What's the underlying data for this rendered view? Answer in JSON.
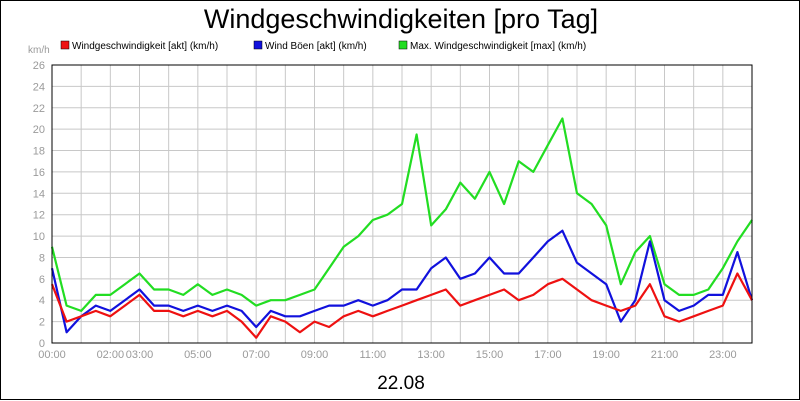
{
  "chart_data": {
    "type": "line",
    "title": "Windgeschwindigkeiten [pro Tag]",
    "ylabel": "km/h",
    "xlabel": "22.08",
    "ylim": [
      0,
      26
    ],
    "yticks": [
      0,
      2,
      4,
      6,
      8,
      10,
      12,
      14,
      16,
      18,
      20,
      22,
      24,
      26
    ],
    "xlim": [
      0,
      24
    ],
    "xticks": [
      {
        "value": 0,
        "label": "00:00"
      },
      {
        "value": 2,
        "label": "02:00"
      },
      {
        "value": 3,
        "label": "03:00"
      },
      {
        "value": 5,
        "label": "05:00"
      },
      {
        "value": 7,
        "label": "07:00"
      },
      {
        "value": 9,
        "label": "09:00"
      },
      {
        "value": 11,
        "label": "11:00"
      },
      {
        "value": 13,
        "label": "13:00"
      },
      {
        "value": 15,
        "label": "15:00"
      },
      {
        "value": 17,
        "label": "17:00"
      },
      {
        "value": 19,
        "label": "19:00"
      },
      {
        "value": 21,
        "label": "21:00"
      },
      {
        "value": 23,
        "label": "23:00"
      }
    ],
    "grid": true,
    "legend_position": "top",
    "x": [
      0.0,
      0.5,
      1.0,
      1.5,
      2.0,
      2.5,
      3.0,
      3.5,
      4.0,
      4.5,
      5.0,
      5.5,
      6.0,
      6.5,
      7.0,
      7.5,
      8.0,
      8.5,
      9.0,
      9.5,
      10.0,
      10.5,
      11.0,
      11.5,
      12.0,
      12.5,
      13.0,
      13.5,
      14.0,
      14.5,
      15.0,
      15.5,
      16.0,
      16.5,
      17.0,
      17.5,
      18.0,
      18.5,
      19.0,
      19.5,
      20.0,
      20.5,
      21.0,
      21.5,
      22.0,
      22.5,
      23.0,
      23.5,
      24.0
    ],
    "series": [
      {
        "name": "Windgeschwindigkeit [akt] (km/h)",
        "color": "#ee1111",
        "values": [
          5.5,
          2.0,
          2.5,
          3.0,
          2.5,
          3.5,
          4.5,
          3.0,
          3.0,
          2.5,
          3.0,
          2.5,
          3.0,
          2.0,
          0.5,
          2.5,
          2.0,
          1.0,
          2.0,
          1.5,
          2.5,
          3.0,
          2.5,
          3.0,
          3.5,
          4.0,
          4.5,
          5.0,
          3.5,
          4.0,
          4.5,
          5.0,
          4.0,
          4.5,
          5.5,
          6.0,
          5.0,
          4.0,
          3.5,
          3.0,
          3.5,
          5.5,
          2.5,
          2.0,
          2.5,
          3.0,
          3.5,
          6.5,
          4.0
        ]
      },
      {
        "name": "Wind Böen [akt] (km/h)",
        "color": "#1111dd",
        "values": [
          7.0,
          1.0,
          2.5,
          3.5,
          3.0,
          4.0,
          5.0,
          3.5,
          3.5,
          3.0,
          3.5,
          3.0,
          3.5,
          3.0,
          1.5,
          3.0,
          2.5,
          2.5,
          3.0,
          3.5,
          3.5,
          4.0,
          3.5,
          4.0,
          5.0,
          5.0,
          7.0,
          8.0,
          6.0,
          6.5,
          8.0,
          6.5,
          6.5,
          8.0,
          9.5,
          10.5,
          7.5,
          6.5,
          5.5,
          2.0,
          4.0,
          9.5,
          4.0,
          3.0,
          3.5,
          4.5,
          4.5,
          8.5,
          4.0
        ]
      },
      {
        "name": "Max. Windgeschwindigkeit [max] (km/h)",
        "color": "#22dd22",
        "values": [
          9.0,
          3.5,
          3.0,
          4.5,
          4.5,
          5.5,
          6.5,
          5.0,
          5.0,
          4.5,
          5.5,
          4.5,
          5.0,
          4.5,
          3.5,
          4.0,
          4.0,
          4.5,
          5.0,
          7.0,
          9.0,
          10.0,
          11.5,
          12.0,
          13.0,
          19.5,
          11.0,
          12.5,
          15.0,
          13.5,
          16.0,
          13.0,
          17.0,
          16.0,
          18.5,
          21.0,
          14.0,
          13.0,
          11.0,
          5.5,
          8.5,
          10.0,
          5.5,
          4.5,
          4.5,
          5.0,
          7.0,
          9.5,
          11.5
        ]
      }
    ]
  }
}
